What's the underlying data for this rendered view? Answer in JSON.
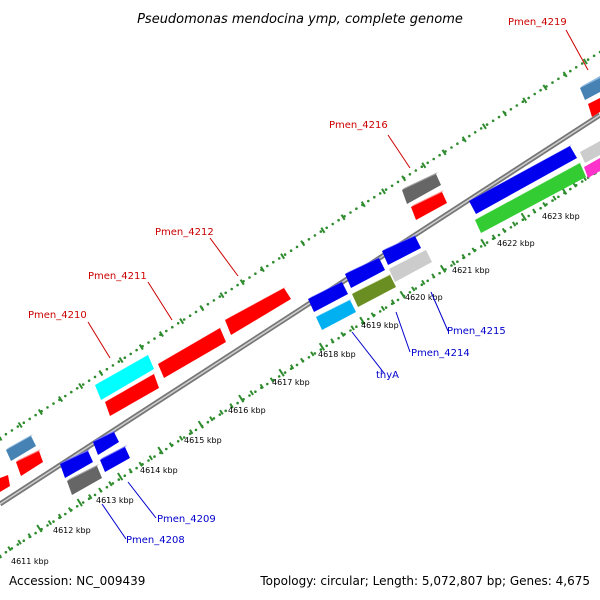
{
  "title": "Pseudomonas mendocina ymp, complete genome",
  "footer": {
    "accession": "Accession: NC_009439",
    "topology": "Topology: circular; Length: 5,072,807 bp; Genes: 4,675"
  },
  "scale_labels": [
    "4611 kbp",
    "4612 kbp",
    "4613 kbp",
    "4614 kbp",
    "4615 kbp",
    "4616 kbp",
    "4617 kbp",
    "4618 kbp",
    "4619 kbp",
    "4620 kbp",
    "4621 kbp",
    "4622 kbp",
    "4623 kbp"
  ],
  "gene_labels_top": [
    "Pmen_4219",
    "Pmen_4216",
    "Pmen_4212",
    "Pmen_4211",
    "Pmen_4210"
  ],
  "gene_labels_bottom": [
    "Pmen_4215",
    "Pmen_4214",
    "thyA",
    "Pmen_4209",
    "Pmen_4208"
  ],
  "colors": {
    "backbone": "#888888",
    "tick": "#2e8b2e",
    "red": "#ff0000",
    "blue": "#0000ee",
    "cyan": "#00ffff",
    "skyblue": "#00b0f0",
    "steel": "#4682b4",
    "dark_gray": "#666666",
    "light_gray": "#cccccc",
    "olive": "#6b8e23",
    "green": "#33cc33",
    "magenta": "#ff33cc",
    "label_red": "#cc0000",
    "label_blue": "#0000cc"
  }
}
